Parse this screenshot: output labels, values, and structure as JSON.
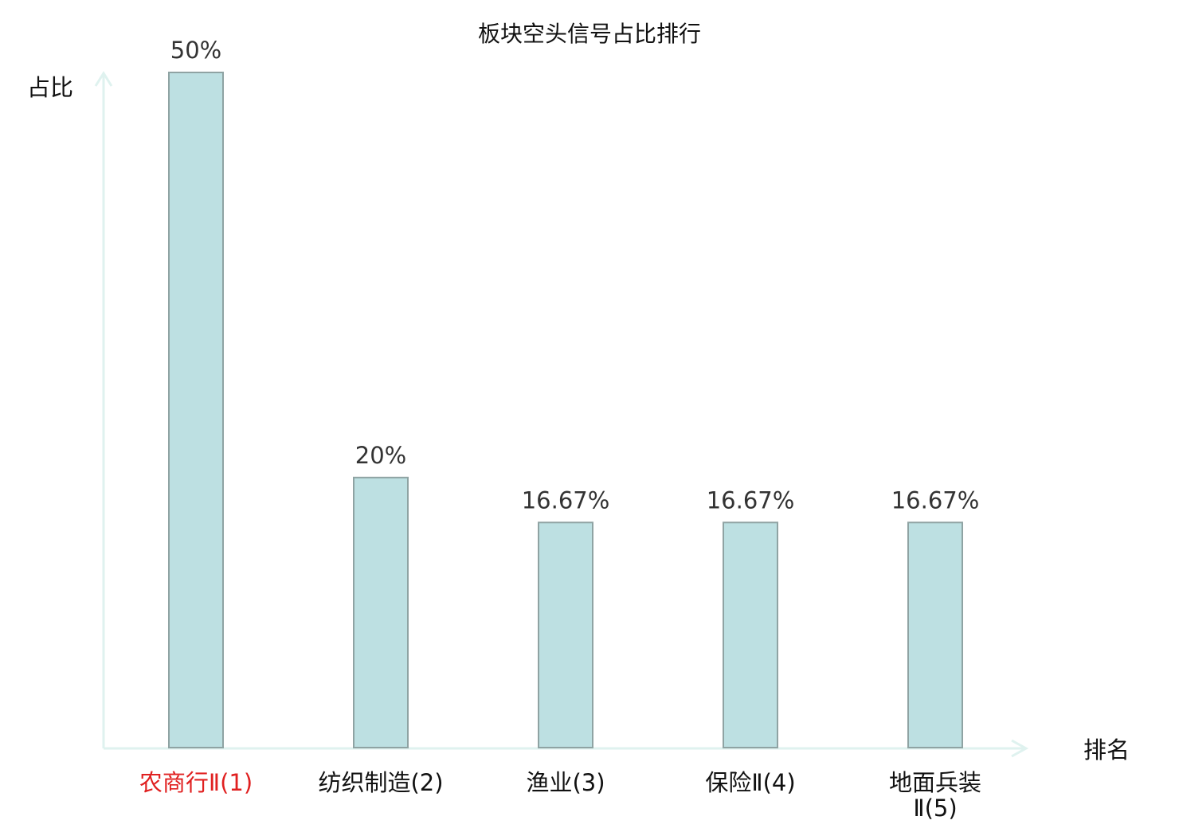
{
  "chart_data": {
    "type": "bar",
    "title": "板块空头信号占比排行",
    "xlabel": "排名",
    "ylabel": "占比",
    "categories": [
      [
        "农商行Ⅱ(1)"
      ],
      [
        "纺织制造(2)"
      ],
      [
        "渔业(3)"
      ],
      [
        "保险Ⅱ(4)"
      ],
      [
        "地面兵装",
        "Ⅱ(5)"
      ]
    ],
    "values": [
      50,
      20,
      16.67,
      16.67,
      16.67
    ],
    "value_labels": [
      "50%",
      "20%",
      "16.67%",
      "16.67%",
      "16.67%"
    ],
    "unit": "%",
    "ylim": [
      0,
      50
    ],
    "grid": false,
    "legend": "none",
    "highlight_index": 0,
    "colors": {
      "bar_fill": "#bde0e2",
      "bar_stroke": "#8fa3a3",
      "axis": "#dff2ef",
      "highlight_label": "#e02020",
      "label": "#111111",
      "value_label": "#333333"
    }
  }
}
